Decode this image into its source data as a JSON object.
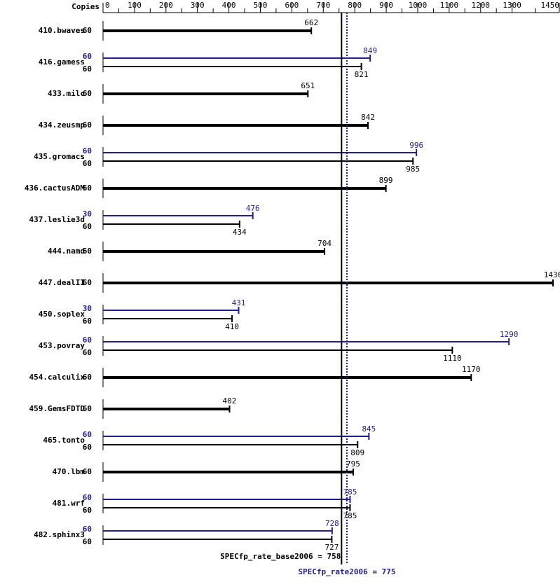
{
  "chart_data": {
    "type": "bar",
    "copies_header": "Copies",
    "xlim": [
      0,
      1450
    ],
    "xticks": [
      0,
      100,
      200,
      300,
      400,
      500,
      600,
      700,
      800,
      900,
      1000,
      1100,
      1200,
      1300,
      1450
    ],
    "base_color": "#000000",
    "peak_color": "#1f1f8f",
    "benchmarks": [
      {
        "name": "410.bwaves",
        "base": {
          "copies": 60,
          "value": 662
        }
      },
      {
        "name": "416.gamess",
        "peak": {
          "copies": 60,
          "value": 849
        },
        "base": {
          "copies": 60,
          "value": 821
        }
      },
      {
        "name": "433.milc",
        "base": {
          "copies": 60,
          "value": 651
        }
      },
      {
        "name": "434.zeusmp",
        "base": {
          "copies": 60,
          "value": 842
        }
      },
      {
        "name": "435.gromacs",
        "peak": {
          "copies": 60,
          "value": 996
        },
        "base": {
          "copies": 60,
          "value": 985
        }
      },
      {
        "name": "436.cactusADM",
        "base": {
          "copies": 60,
          "value": 899
        }
      },
      {
        "name": "437.leslie3d",
        "peak": {
          "copies": 30,
          "value": 476
        },
        "base": {
          "copies": 60,
          "value": 434
        }
      },
      {
        "name": "444.namd",
        "base": {
          "copies": 60,
          "value": 704
        }
      },
      {
        "name": "447.dealII",
        "base": {
          "copies": 60,
          "value": 1430
        }
      },
      {
        "name": "450.soplex",
        "peak": {
          "copies": 30,
          "value": 431
        },
        "base": {
          "copies": 60,
          "value": 410
        }
      },
      {
        "name": "453.povray",
        "peak": {
          "copies": 60,
          "value": 1290
        },
        "base": {
          "copies": 60,
          "value": 1110
        }
      },
      {
        "name": "454.calculix",
        "base": {
          "copies": 60,
          "value": 1170
        }
      },
      {
        "name": "459.GemsFDTD",
        "base": {
          "copies": 60,
          "value": 402
        }
      },
      {
        "name": "465.tonto",
        "peak": {
          "copies": 60,
          "value": 845
        },
        "base": {
          "copies": 60,
          "value": 809
        }
      },
      {
        "name": "470.lbm",
        "base": {
          "copies": 60,
          "value": 795
        }
      },
      {
        "name": "481.wrf",
        "peak": {
          "copies": 60,
          "value": 785
        },
        "base": {
          "copies": 60,
          "value": 785
        }
      },
      {
        "name": "482.sphinx3",
        "peak": {
          "copies": 60,
          "value": 728
        },
        "base": {
          "copies": 60,
          "value": 727
        }
      }
    ],
    "reference_lines": [
      {
        "label": "SPECfp_rate_base2006 = 758",
        "value": 758,
        "style": "solid",
        "color": "#000000"
      },
      {
        "label": "SPECfp_rate2006 = 775",
        "value": 775,
        "style": "dotted",
        "color": "#1f1f8f"
      }
    ]
  }
}
